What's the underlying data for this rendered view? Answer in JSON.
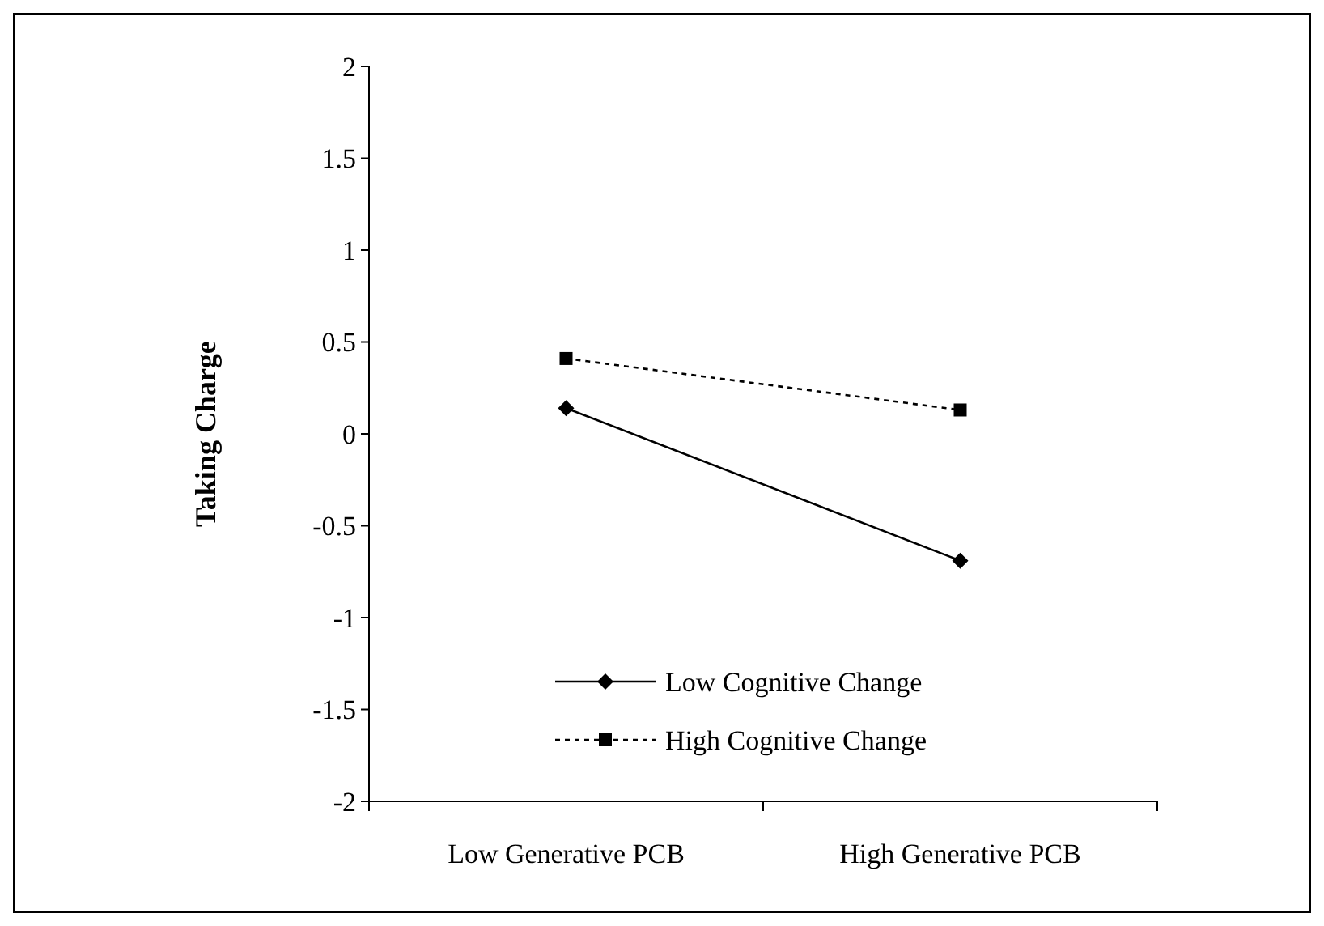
{
  "chart_data": {
    "type": "line",
    "ylabel": "Taking Charge",
    "categories": [
      "Low Generative PCB",
      "High Generative PCB"
    ],
    "series": [
      {
        "name": "Low Cognitive Change",
        "color": "#000000",
        "values": [
          0.14,
          -0.69
        ],
        "marker": "diamond",
        "line_style": "solid"
      },
      {
        "name": "High Cognitive Change",
        "color": "#000000",
        "values": [
          0.41,
          0.13
        ],
        "marker": "square",
        "line_style": "dotted"
      }
    ],
    "ylim": [
      -2,
      2
    ],
    "yticks": [
      -2,
      -1.5,
      -1,
      -0.5,
      0,
      0.5,
      1,
      1.5,
      2
    ],
    "grid": false,
    "legend": "bottom"
  }
}
